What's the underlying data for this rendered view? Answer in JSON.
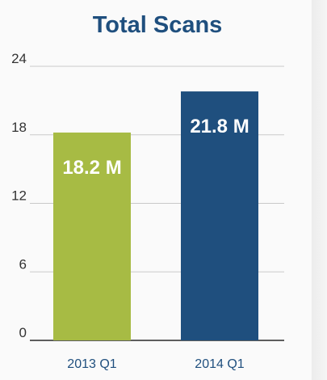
{
  "chart_data": {
    "type": "bar",
    "title": "Total Scans",
    "categories": [
      "2013 Q1",
      "2014 Q1"
    ],
    "values": [
      18.2,
      21.8
    ],
    "data_labels": [
      "18.2 M",
      "21.8 M"
    ],
    "bar_colors": [
      "#a7bb44",
      "#1f4f7e"
    ],
    "title_color": "#1f4f7e",
    "ylim": [
      0,
      24
    ],
    "yticks": [
      0,
      6,
      12,
      18,
      24
    ],
    "grid": true,
    "xlabel": "",
    "ylabel": ""
  }
}
